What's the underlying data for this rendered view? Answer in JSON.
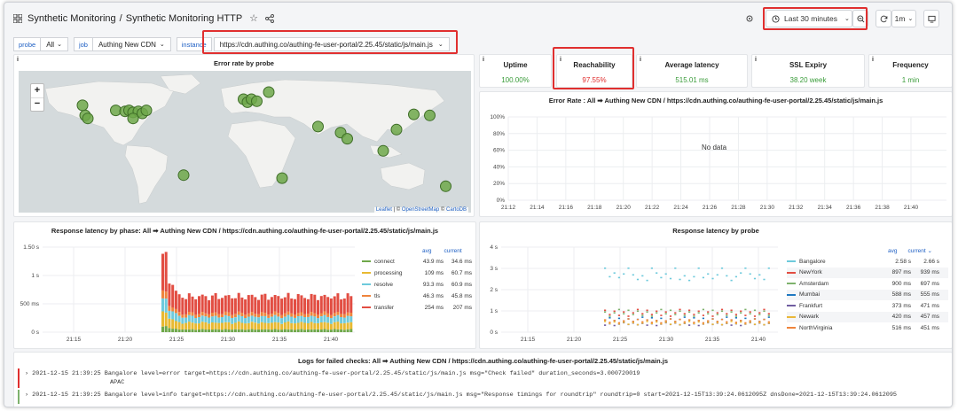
{
  "header": {
    "breadcrumb_folder": "Synthetic Monitoring",
    "breadcrumb_sep": "/",
    "breadcrumb_title": "Synthetic Monitoring HTTP",
    "time_range": "Last 30 minutes",
    "refresh_interval": "1m"
  },
  "variables": [
    {
      "label": "probe",
      "value": "All"
    },
    {
      "label": "job",
      "value": "Authing New CDN"
    },
    {
      "label": "instance",
      "value": "https://cdn.authing.co/authing-fe-user-portal/2.25.45/static/js/main.js"
    }
  ],
  "map_panel": {
    "title": "Error rate by probe",
    "zoom_in": "+",
    "zoom_out": "−",
    "attribution_leaflet": "Leaflet",
    "attribution_sep": "| ©",
    "attribution_osm": "OpenStreetMap",
    "attribution_sep2": "©",
    "attribution_carto": "CartoDB",
    "probe_points": [
      {
        "lon": -120,
        "lat": 36
      },
      {
        "lon": -118,
        "lat": 33
      },
      {
        "lon": -122,
        "lat": 46
      },
      {
        "lon": -97,
        "lat": 41
      },
      {
        "lon": -90,
        "lat": 40
      },
      {
        "lon": -87,
        "lat": 41
      },
      {
        "lon": -84,
        "lat": 39
      },
      {
        "lon": -80,
        "lat": 40
      },
      {
        "lon": -77,
        "lat": 38
      },
      {
        "lon": -74,
        "lat": 41
      },
      {
        "lon": -84,
        "lat": 33
      },
      {
        "lon": -46,
        "lat": -23
      },
      {
        "lon": -1,
        "lat": 52
      },
      {
        "lon": 2,
        "lat": 49
      },
      {
        "lon": 5,
        "lat": 52
      },
      {
        "lon": 9,
        "lat": 50
      },
      {
        "lon": 18,
        "lat": 59
      },
      {
        "lon": 28,
        "lat": -26
      },
      {
        "lon": 55,
        "lat": 25
      },
      {
        "lon": 72,
        "lat": 19
      },
      {
        "lon": 77,
        "lat": 13
      },
      {
        "lon": 104,
        "lat": 1
      },
      {
        "lon": 114,
        "lat": 22
      },
      {
        "lon": 127,
        "lat": 37
      },
      {
        "lon": 139,
        "lat": 36
      },
      {
        "lon": 151,
        "lat": -34
      }
    ]
  },
  "stats": [
    {
      "title": "Uptime",
      "value": "100.00%",
      "color": "#3a9c3a"
    },
    {
      "title": "Reachability",
      "value": "97.55%",
      "color": "#e02f2f"
    },
    {
      "title": "Average latency",
      "value": "515.01 ms",
      "color": "#3a9c3a"
    },
    {
      "title": "SSL Expiry",
      "value": "38.20 week",
      "color": "#3a9c3a"
    },
    {
      "title": "Frequency",
      "value": "1 min",
      "color": "#3a9c3a"
    }
  ],
  "error_rate_panel": {
    "title": "Error Rate : All ➡ Authing New CDN / https://cdn.authing.co/authing-fe-user-portal/2.25.45/static/js/main.js",
    "no_data": "No data",
    "y_ticks": [
      "100%",
      "80%",
      "60%",
      "40%",
      "20%",
      "0%"
    ],
    "x_ticks": [
      "21:12",
      "21:14",
      "21:16",
      "21:18",
      "21:20",
      "21:22",
      "21:24",
      "21:26",
      "21:28",
      "21:30",
      "21:32",
      "21:34",
      "21:36",
      "21:38",
      "21:40"
    ]
  },
  "latency_phase_panel": {
    "title": "Response latency by phase: All ➡ Authing New CDN / https://cdn.authing.co/authing-fe-user-portal/2.25.45/static/js/main.js",
    "y_ticks": [
      "1.50 s",
      "1 s",
      "500 ms",
      "0 s"
    ],
    "x_ticks": [
      "21:15",
      "21:20",
      "21:25",
      "21:30",
      "21:35",
      "21:40"
    ],
    "legend_headers": {
      "avg": "avg",
      "current": "current"
    },
    "legend": [
      {
        "name": "connect",
        "avg": "43.9 ms",
        "current": "34.6 ms",
        "color": "#6fa84a"
      },
      {
        "name": "processing",
        "avg": "109 ms",
        "current": "60.7 ms",
        "color": "#e8b931"
      },
      {
        "name": "resolve",
        "avg": "93.3 ms",
        "current": "60.9 ms",
        "color": "#6ecadc"
      },
      {
        "name": "tls",
        "avg": "46.3 ms",
        "current": "45.8 ms",
        "color": "#ef843c"
      },
      {
        "name": "transfer",
        "avg": "254 ms",
        "current": "207 ms",
        "color": "#e24d42"
      }
    ]
  },
  "latency_probe_panel": {
    "title": "Response latency by probe",
    "y_ticks": [
      "4 s",
      "3 s",
      "2 s",
      "1 s",
      "0 s"
    ],
    "x_ticks": [
      "21:15",
      "21:20",
      "21:25",
      "21:30",
      "21:35",
      "21:40"
    ],
    "legend_headers": {
      "avg": "avg",
      "current": "current ⌄"
    },
    "legend": [
      {
        "name": "Bangalore",
        "avg": "2.58 s",
        "current": "2.66 s",
        "color": "#6ecadc"
      },
      {
        "name": "NewYork",
        "avg": "897 ms",
        "current": "939 ms",
        "color": "#e24d42"
      },
      {
        "name": "Amsterdam",
        "avg": "900 ms",
        "current": "697 ms",
        "color": "#7eb26d"
      },
      {
        "name": "Mumbai",
        "avg": "588 ms",
        "current": "555 ms",
        "color": "#1f78c1"
      },
      {
        "name": "Frankfurt",
        "avg": "373 ms",
        "current": "471 ms",
        "color": "#705da0"
      },
      {
        "name": "Newark",
        "avg": "420 ms",
        "current": "457 ms",
        "color": "#eab839"
      },
      {
        "name": "NorthVirginia",
        "avg": "516 ms",
        "current": "451 ms",
        "color": "#ef843c"
      }
    ]
  },
  "logs_panel": {
    "title": "Logs for failed checks: All ➡ Authing New CDN / https://cdn.authing.co/authing-fe-user-portal/2.25.45/static/js/main.js",
    "lines": [
      {
        "text": "2021-12-15 21:39:25 Bangalore  level=error target=https://cdn.authing.co/authing-fe-user-portal/2.25.45/static/js/main.js msg=\"Check failed\" duration_seconds=3.000720019",
        "cont": "APAC"
      },
      {
        "text": "2021-12-15 21:39:25 Bangalore  level=info target=https://cdn.authing.co/authing-fe-user-portal/2.25.45/static/js/main.js msg=\"Response timings for roundtrip\" roundtrip=0 start=2021-12-15T13:39:24.0612095Z dnsDone=2021-12-15T13:39:24.0612095",
        "cont": ""
      }
    ]
  }
}
